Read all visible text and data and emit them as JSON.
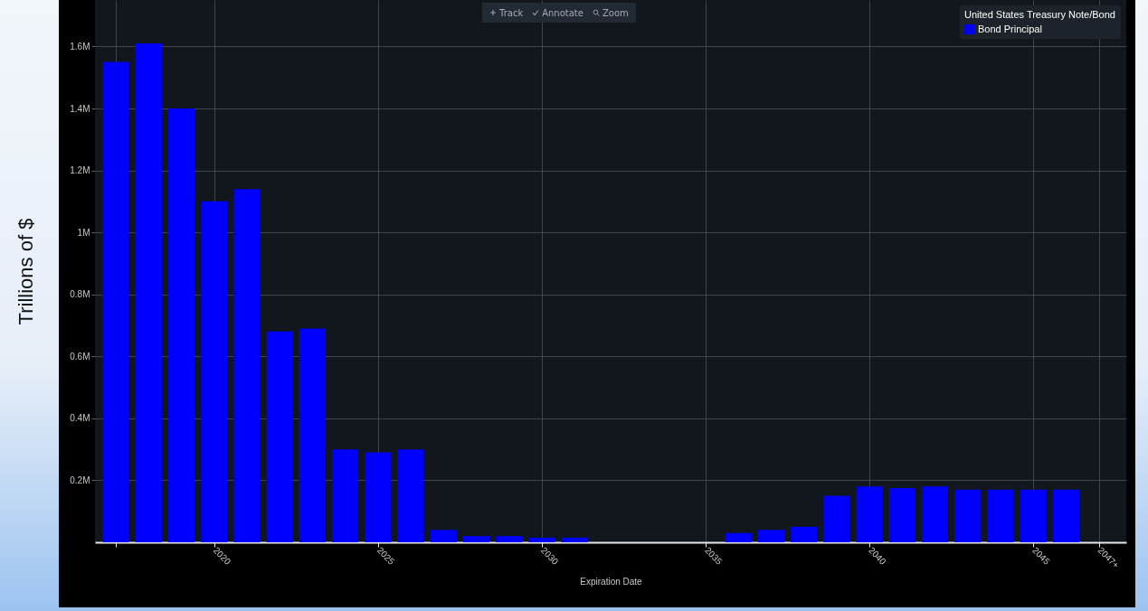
{
  "chart_data": {
    "type": "bar",
    "xlabel": "Expiration Date",
    "ylabel": "Trillions of $",
    "legend_title": "United States Treasury Note/Bond",
    "x": [
      2017,
      2018,
      2019,
      2020,
      2021,
      2022,
      2023,
      2024,
      2025,
      2026,
      2027,
      2028,
      2029,
      2030,
      2031,
      2036,
      2037,
      2038,
      2039,
      2040,
      2041,
      2042,
      2043,
      2044,
      2045,
      2046
    ],
    "series": [
      {
        "name": "Bond Principal",
        "color": "#0000ff",
        "values": [
          1550000,
          1610000,
          1400000,
          1100000,
          1140000,
          680000,
          690000,
          300000,
          290000,
          300000,
          40000,
          20000,
          20000,
          15000,
          15000,
          30000,
          40000,
          50000,
          150000,
          180000,
          175000,
          180000,
          170000,
          170000,
          170000,
          170000
        ]
      }
    ],
    "xlim": [
      2016.5,
      2047.7
    ],
    "xticks": [
      {
        "value": 2017,
        "label": null
      },
      2020,
      2025,
      2030,
      2035,
      2040,
      2045,
      {
        "value": 2047,
        "label": "2047+"
      }
    ],
    "ylim": [
      0,
      1750000
    ],
    "yticks": [
      {
        "value": 200000,
        "label": "0.2M"
      },
      {
        "value": 400000,
        "label": "0.4M"
      },
      {
        "value": 600000,
        "label": "0.6M"
      },
      {
        "value": 800000,
        "label": "0.8M"
      },
      {
        "value": 1000000,
        "label": "1M"
      },
      {
        "value": 1200000,
        "label": "1.2M"
      },
      {
        "value": 1400000,
        "label": "1.4M"
      },
      {
        "value": 1600000,
        "label": "1.6M"
      }
    ],
    "grid": true,
    "legend": "top right",
    "annotations": [
      "Track",
      "Annotate",
      "Zoom"
    ]
  }
}
